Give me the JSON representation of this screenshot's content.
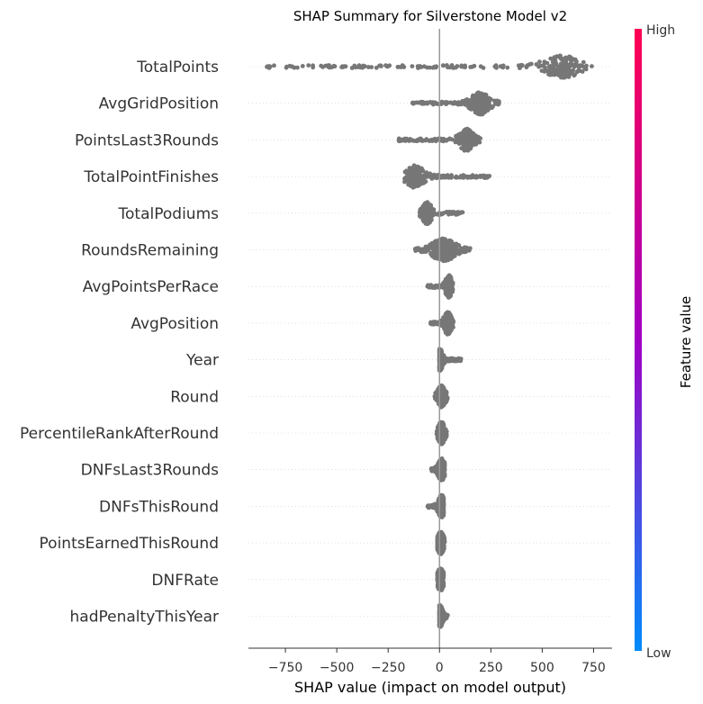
{
  "chart_data": {
    "type": "scatter",
    "title": "SHAP Summary for Silverstone Model v2",
    "xlabel": "SHAP value (impact on model output)",
    "xlim": [
      -930,
      840
    ],
    "xticks": [
      -750,
      -500,
      -250,
      0,
      250,
      500,
      750
    ],
    "xtick_labels": [
      "−750",
      "−500",
      "−250",
      "0",
      "250",
      "500",
      "750"
    ],
    "grid": false,
    "point_color": "#777777",
    "colorbar": {
      "label": "Feature value",
      "high_label": "High",
      "low_label": "Low",
      "high_color": "#ff0052",
      "mid_color": "#a000c4",
      "low_color": "#008bfb",
      "position": "right"
    },
    "features": [
      {
        "name": "TotalPoints",
        "min": -850,
        "max": 750,
        "mode": 600,
        "spread": 70,
        "tail_density": 0.55
      },
      {
        "name": "AvgGridPosition",
        "min": -135,
        "max": 290,
        "mode": 200,
        "spread": 35,
        "tail_density": 0.35
      },
      {
        "name": "PointsLast3Rounds",
        "min": -200,
        "max": 205,
        "mode": 130,
        "spread": 28,
        "tail_density": 0.35
      },
      {
        "name": "TotalPointFinishes",
        "min": -170,
        "max": 250,
        "mode": -120,
        "spread": 35,
        "tail_density": 0.45
      },
      {
        "name": "TotalPodiums",
        "min": -100,
        "max": 115,
        "mode": -60,
        "spread": 18,
        "tail_density": 0.3
      },
      {
        "name": "RoundsRemaining",
        "min": -120,
        "max": 155,
        "mode": 20,
        "spread": 45,
        "tail_density": 0.3
      },
      {
        "name": "AvgPointsPerRace",
        "min": -60,
        "max": 65,
        "mode": 45,
        "spread": 12,
        "tail_density": 0.25
      },
      {
        "name": "AvgPosition",
        "min": -45,
        "max": 70,
        "mode": 40,
        "spread": 15,
        "tail_density": 0.25
      },
      {
        "name": "Year",
        "min": 0,
        "max": 105,
        "mode": 0,
        "spread": 8,
        "tail_density": 0.3
      },
      {
        "name": "Round",
        "min": -25,
        "max": 40,
        "mode": 10,
        "spread": 15,
        "tail_density": 0.25
      },
      {
        "name": "PercentileRankAfterRound",
        "min": -15,
        "max": 35,
        "mode": 10,
        "spread": 8,
        "tail_density": 0.2
      },
      {
        "name": "DNFsLast3Rounds",
        "min": -40,
        "max": 25,
        "mode": 10,
        "spread": 8,
        "tail_density": 0.25
      },
      {
        "name": "DNFsThisRound",
        "min": -60,
        "max": 20,
        "mode": 10,
        "spread": 6,
        "tail_density": 0.25
      },
      {
        "name": "PointsEarnedThisRound",
        "min": -10,
        "max": 25,
        "mode": 5,
        "spread": 6,
        "tail_density": 0.2
      },
      {
        "name": "DNFRate",
        "min": -10,
        "max": 20,
        "mode": 5,
        "spread": 6,
        "tail_density": 0.2
      },
      {
        "name": "hadPenaltyThisYear",
        "min": 0,
        "max": 40,
        "mode": 0,
        "spread": 4,
        "tail_density": 0.2
      }
    ]
  }
}
